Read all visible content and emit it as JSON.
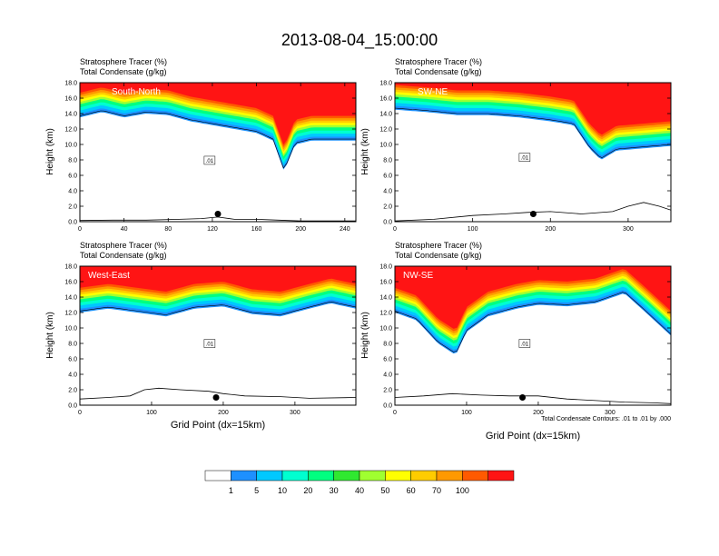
{
  "figure": {
    "title": "2013-08-04_15:00:00",
    "footnote": "Total Condensate Contours: .01 to .01 by .000"
  },
  "colorbar": {
    "colors": [
      "#ffffff",
      "#1e90ff",
      "#00c8ff",
      "#00ffd0",
      "#00ff80",
      "#30e830",
      "#a0ff30",
      "#ffff00",
      "#ffcc00",
      "#ff9900",
      "#ff5a00",
      "#ff1414"
    ],
    "labels": [
      "1",
      "5",
      "10",
      "20",
      "30",
      "40",
      "50",
      "60",
      "70",
      "100"
    ]
  },
  "chart_data": [
    {
      "type": "heatmap",
      "name": "South-North",
      "label": "South-North",
      "title_left_1": "Stratosphere Tracer   (%)",
      "title_left_2": "Total Condensate   (g/kg)",
      "ylabel": "Height (km)",
      "xlabel": "",
      "xlim": [
        0,
        250
      ],
      "ylim": [
        0,
        18
      ],
      "xticks": [
        0,
        40,
        80,
        120,
        160,
        200,
        240
      ],
      "xtick_labels": [
        "0",
        "40",
        "80",
        "120",
        "160",
        "200",
        "240"
      ],
      "yticks": [
        0,
        2,
        4,
        6,
        8,
        10,
        12,
        14,
        16,
        18
      ],
      "ytick_labels": [
        "0.0",
        "2.0",
        "4.0",
        "6.0",
        "8.0",
        "10.0",
        "12.0",
        "14.0",
        "16.0",
        "18.0"
      ],
      "contour_label": ".01",
      "tropopause_km": [
        [
          0,
          13.5
        ],
        [
          20,
          14.2
        ],
        [
          40,
          13.5
        ],
        [
          60,
          14.0
        ],
        [
          80,
          13.8
        ],
        [
          100,
          13.0
        ],
        [
          120,
          12.5
        ],
        [
          140,
          12.0
        ],
        [
          160,
          11.5
        ],
        [
          175,
          10.5
        ],
        [
          185,
          6.5
        ],
        [
          195,
          10.0
        ],
        [
          210,
          10.5
        ],
        [
          230,
          10.5
        ],
        [
          250,
          10.5
        ]
      ],
      "terrain_km": [
        [
          0,
          0.15
        ],
        [
          30,
          0.2
        ],
        [
          60,
          0.2
        ],
        [
          90,
          0.3
        ],
        [
          110,
          0.4
        ],
        [
          125,
          0.6
        ],
        [
          140,
          0.3
        ],
        [
          160,
          0.3
        ],
        [
          180,
          0.2
        ],
        [
          200,
          0.1
        ],
        [
          250,
          0.1
        ]
      ],
      "marker": {
        "x": 125,
        "y_km": 1.0
      }
    },
    {
      "type": "heatmap",
      "name": "SW-NE",
      "label": "SW-NE",
      "title_left_1": "Stratosphere Tracer   (%)",
      "title_left_2": "Total Condensate   (g/kg)",
      "ylabel": "Height (km)",
      "xlabel": "",
      "xlim": [
        0,
        355
      ],
      "ylim": [
        0,
        18
      ],
      "xticks": [
        0,
        100,
        200,
        300
      ],
      "xtick_labels": [
        "0",
        "100",
        "200",
        "300"
      ],
      "yticks": [
        0,
        2,
        4,
        6,
        8,
        10,
        12,
        14,
        16,
        18
      ],
      "ytick_labels": [
        "0.0",
        "2.0",
        "4.0",
        "6.0",
        "8.0",
        "10.0",
        "12.0",
        "14.0",
        "16.0",
        "18.0"
      ],
      "contour_label": ".01",
      "tropopause_km": [
        [
          0,
          14.5
        ],
        [
          40,
          14.2
        ],
        [
          80,
          13.8
        ],
        [
          120,
          13.8
        ],
        [
          160,
          13.5
        ],
        [
          200,
          13.0
        ],
        [
          230,
          12.5
        ],
        [
          250,
          9.5
        ],
        [
          265,
          8.0
        ],
        [
          285,
          9.2
        ],
        [
          320,
          9.5
        ],
        [
          355,
          9.8
        ]
      ],
      "terrain_km": [
        [
          0,
          0.1
        ],
        [
          50,
          0.3
        ],
        [
          100,
          0.8
        ],
        [
          140,
          1.0
        ],
        [
          170,
          1.2
        ],
        [
          200,
          1.3
        ],
        [
          240,
          1.0
        ],
        [
          280,
          1.3
        ],
        [
          300,
          2.0
        ],
        [
          320,
          2.5
        ],
        [
          340,
          2.0
        ],
        [
          355,
          1.5
        ]
      ],
      "marker": {
        "x": 178,
        "y_km": 1.0
      }
    },
    {
      "type": "heatmap",
      "name": "West-East",
      "label": "West-East",
      "title_left_1": "Stratosphere Tracer   (%)",
      "title_left_2": "Total Condensate   (g/kg)",
      "ylabel": "Height (km)",
      "xlabel": "Grid Point (dx=15km)",
      "xlim": [
        0,
        385
      ],
      "ylim": [
        0,
        18
      ],
      "xticks": [
        0,
        100,
        200,
        300
      ],
      "xtick_labels": [
        "0",
        "100",
        "200",
        "300"
      ],
      "yticks": [
        0,
        2,
        4,
        6,
        8,
        10,
        12,
        14,
        16,
        18
      ],
      "ytick_labels": [
        "0.0",
        "2.0",
        "4.0",
        "6.0",
        "8.0",
        "10.0",
        "12.0",
        "14.0",
        "16.0",
        "18.0"
      ],
      "contour_label": ".01",
      "tropopause_km": [
        [
          0,
          12.0
        ],
        [
          40,
          12.5
        ],
        [
          80,
          12.0
        ],
        [
          120,
          11.5
        ],
        [
          160,
          12.5
        ],
        [
          200,
          12.8
        ],
        [
          240,
          11.8
        ],
        [
          280,
          11.5
        ],
        [
          320,
          12.5
        ],
        [
          350,
          13.2
        ],
        [
          385,
          12.5
        ]
      ],
      "terrain_km": [
        [
          0,
          0.8
        ],
        [
          40,
          1.0
        ],
        [
          70,
          1.2
        ],
        [
          90,
          2.0
        ],
        [
          110,
          2.2
        ],
        [
          140,
          2.0
        ],
        [
          180,
          1.8
        ],
        [
          200,
          1.5
        ],
        [
          230,
          1.2
        ],
        [
          280,
          1.1
        ],
        [
          320,
          0.9
        ],
        [
          385,
          1.0
        ]
      ],
      "marker": {
        "x": 190,
        "y_km": 1.0
      }
    },
    {
      "type": "heatmap",
      "name": "NW-SE",
      "label": "NW-SE",
      "title_left_1": "Stratosphere Tracer   (%)",
      "title_left_2": "Total Condensate   (g/kg)",
      "ylabel": "Height (km)",
      "xlabel": "Grid Point (dx=15km)",
      "xlim": [
        0,
        385
      ],
      "ylim": [
        0,
        18
      ],
      "xticks": [
        0,
        100,
        200,
        300
      ],
      "xtick_labels": [
        "0",
        "100",
        "200",
        "300"
      ],
      "yticks": [
        0,
        2,
        4,
        6,
        8,
        10,
        12,
        14,
        16,
        18
      ],
      "ytick_labels": [
        "0.0",
        "2.0",
        "4.0",
        "6.0",
        "8.0",
        "10.0",
        "12.0",
        "14.0",
        "16.0",
        "18.0"
      ],
      "contour_label": ".01",
      "tropopause_km": [
        [
          0,
          12.0
        ],
        [
          30,
          11.0
        ],
        [
          60,
          8.0
        ],
        [
          85,
          6.5
        ],
        [
          100,
          9.5
        ],
        [
          130,
          11.5
        ],
        [
          170,
          12.5
        ],
        [
          200,
          13.0
        ],
        [
          240,
          12.8
        ],
        [
          280,
          13.2
        ],
        [
          320,
          14.5
        ],
        [
          350,
          12.0
        ],
        [
          385,
          9.0
        ]
      ],
      "terrain_km": [
        [
          0,
          1.0
        ],
        [
          40,
          1.2
        ],
        [
          80,
          1.5
        ],
        [
          120,
          1.3
        ],
        [
          160,
          1.2
        ],
        [
          200,
          1.2
        ],
        [
          240,
          0.8
        ],
        [
          280,
          0.6
        ],
        [
          320,
          0.4
        ],
        [
          360,
          0.3
        ],
        [
          385,
          0.2
        ]
      ],
      "marker": {
        "x": 178,
        "y_km": 1.0
      }
    }
  ]
}
